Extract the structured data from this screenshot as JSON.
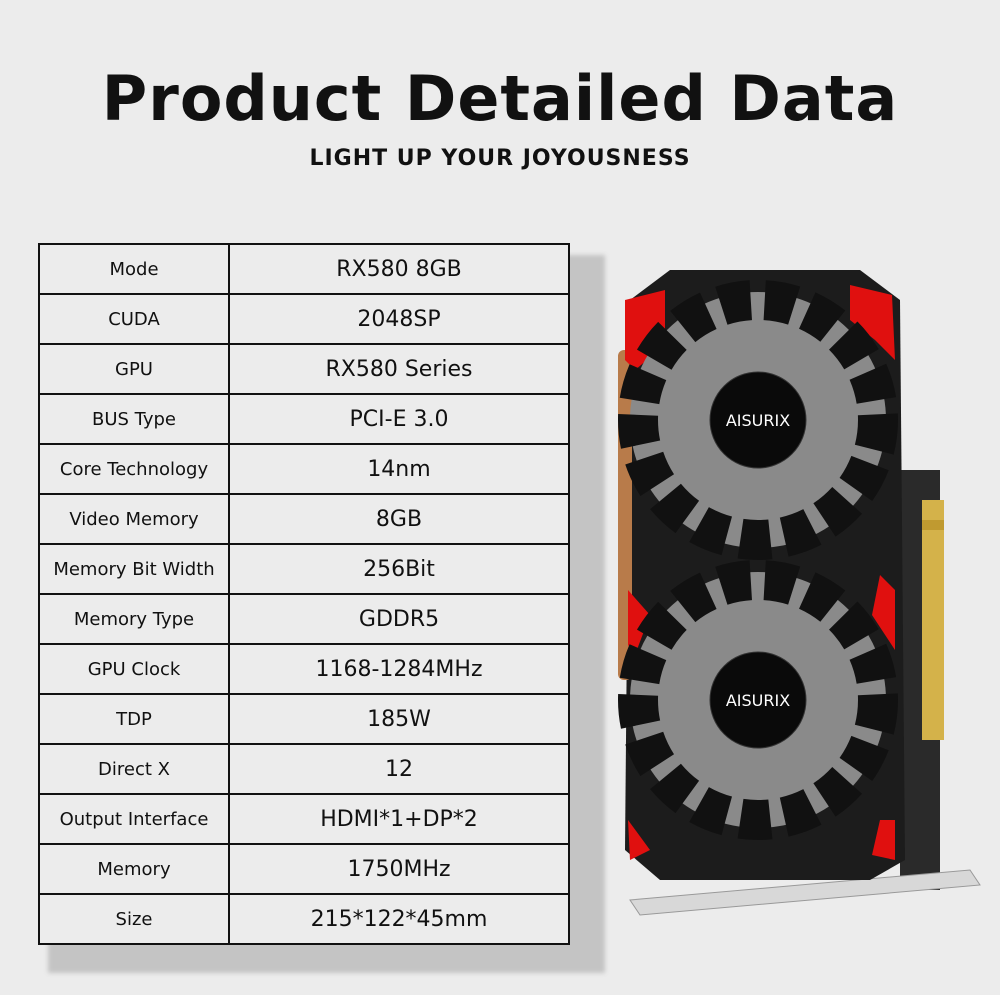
{
  "header": {
    "title": "Product Detailed Data",
    "subtitle": "LIGHT UP YOUR JOYOUSNESS"
  },
  "specs": [
    {
      "label": "Mode",
      "value": "RX580 8GB"
    },
    {
      "label": "CUDA",
      "value": "2048SP"
    },
    {
      "label": "GPU",
      "value": "RX580 Series"
    },
    {
      "label": "BUS Type",
      "value": "PCI-E 3.0"
    },
    {
      "label": "Core Technology",
      "value": "14nm"
    },
    {
      "label": "Video Memory",
      "value": "8GB"
    },
    {
      "label": "Memory Bit Width",
      "value": "256Bit"
    },
    {
      "label": "Memory Type",
      "value": "GDDR5"
    },
    {
      "label": "GPU Clock",
      "value": "1168-1284MHz"
    },
    {
      "label": "TDP",
      "value": "185W"
    },
    {
      "label": "Direct X",
      "value": "12"
    },
    {
      "label": "Output Interface",
      "value": "HDMI*1+DP*2"
    },
    {
      "label": "Memory",
      "value": "1750MHz"
    },
    {
      "label": "Size",
      "value": "215*122*45mm"
    }
  ],
  "product": {
    "brand": "AISURIX",
    "colors": {
      "accent": "#e0100f",
      "body": "#1c1c1c",
      "gold": "#d4b24a"
    }
  }
}
